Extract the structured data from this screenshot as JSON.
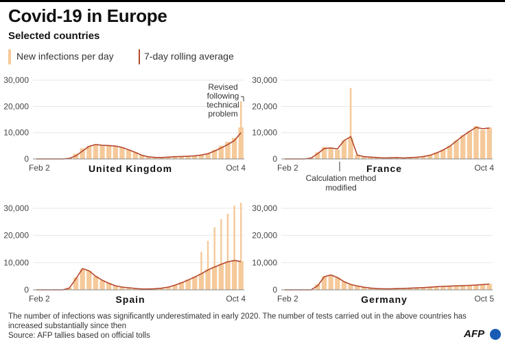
{
  "title": "Covid-19 in Europe",
  "subtitle": "Selected countries",
  "legend": {
    "bars_label": "New infections per day",
    "line_label": "7-day rolling average"
  },
  "colors": {
    "bars": "#f5c99a",
    "line": "#b5472c",
    "axis": "#888888",
    "tick_text": "#444444",
    "afp_blue": "#1a5bb4"
  },
  "footnote": "The number of infections was significantly underestimated in early 2020. The number of tests carried out in the above countries has increased substantially since then",
  "source": "Source: AFP tallies based on official tolls",
  "logo_text": "AFP",
  "chart_data": [
    {
      "type": "bar",
      "title": "United Kingdom",
      "x_start": "Feb 2",
      "x_end": "Oct 4",
      "y_ticks": [
        "30,000",
        "20,000",
        "10,000",
        "0"
      ],
      "ylim": [
        0,
        30000
      ],
      "weekly_new_infections": [
        0,
        0,
        0,
        0,
        0,
        300,
        2000,
        4000,
        5000,
        5500,
        5000,
        5200,
        5000,
        4500,
        3500,
        2500,
        1500,
        800,
        600,
        500,
        800,
        900,
        1000,
        1100,
        1300,
        1600,
        2000,
        3500,
        5000,
        6500,
        8000,
        12000
      ],
      "rolling_average": [
        0,
        0,
        0,
        0,
        0,
        200,
        1200,
        3000,
        4800,
        5500,
        5200,
        5100,
        4900,
        4400,
        3500,
        2500,
        1400,
        800,
        600,
        550,
        700,
        850,
        950,
        1050,
        1200,
        1500,
        2000,
        3000,
        4200,
        5500,
        7000,
        10000
      ],
      "spike": {
        "value": 22000,
        "label": [
          "Revised",
          "following",
          "technical",
          "problem"
        ]
      }
    },
    {
      "type": "bar",
      "title": "France",
      "x_start": "Feb 2",
      "x_end": "Oct 4",
      "y_ticks": [
        "30,000",
        "20,000",
        "10,000",
        "0"
      ],
      "ylim": [
        0,
        30000
      ],
      "weekly_new_infections": [
        0,
        0,
        0,
        0,
        500,
        2500,
        4500,
        4000,
        3500,
        7000,
        8000,
        1500,
        900,
        800,
        600,
        400,
        500,
        500,
        400,
        500,
        700,
        1000,
        1500,
        2500,
        3500,
        5000,
        7000,
        9000,
        10500,
        12500,
        11000,
        12000
      ],
      "rolling_average": [
        0,
        0,
        0,
        0,
        300,
        2000,
        4000,
        4200,
        3800,
        7000,
        8500,
        1500,
        900,
        700,
        550,
        400,
        450,
        500,
        400,
        500,
        650,
        950,
        1400,
        2300,
        3400,
        4800,
        6800,
        8800,
        10500,
        12000,
        11500,
        11800
      ],
      "spike": {
        "value": 27000,
        "label": [
          "Calculation method",
          "modified"
        ]
      }
    },
    {
      "type": "bar",
      "title": "Spain",
      "x_start": "Feb 2",
      "x_end": "Oct 4",
      "y_ticks": [
        "30,000",
        "20,000",
        "10,000",
        "0"
      ],
      "ylim": [
        0,
        30000
      ],
      "weekly_new_infections": [
        0,
        0,
        0,
        0,
        0,
        800,
        4500,
        7500,
        7000,
        5000,
        3500,
        2500,
        1500,
        1000,
        800,
        500,
        300,
        300,
        400,
        600,
        1000,
        1800,
        2800,
        3800,
        4800,
        6000,
        7500,
        8500,
        9500,
        10500,
        11000,
        10500
      ],
      "rolling_average": [
        0,
        0,
        0,
        0,
        0,
        600,
        4000,
        7800,
        7000,
        5000,
        3500,
        2400,
        1500,
        1000,
        750,
        500,
        300,
        300,
        400,
        600,
        1000,
        1700,
        2600,
        3600,
        4700,
        5900,
        7300,
        8400,
        9400,
        10300,
        10800,
        10400
      ],
      "weekend_spikes": [
        14000,
        18000,
        23000,
        26000,
        28000,
        31000,
        32000
      ]
    },
    {
      "type": "bar",
      "title": "Germany",
      "x_start": "Feb 2",
      "x_end": "Oct 5",
      "y_ticks": [
        "30,000",
        "20,000",
        "10,000",
        "0"
      ],
      "ylim": [
        0,
        30000
      ],
      "weekly_new_infections": [
        0,
        0,
        0,
        0,
        0,
        2000,
        5000,
        5500,
        4500,
        3000,
        2000,
        1500,
        1000,
        700,
        500,
        400,
        400,
        500,
        500,
        600,
        700,
        800,
        1000,
        1200,
        1300,
        1400,
        1500,
        1600,
        1700,
        1800,
        2000,
        2200
      ],
      "rolling_average": [
        0,
        0,
        0,
        0,
        0,
        1500,
        4800,
        5500,
        4500,
        3000,
        2000,
        1400,
        950,
        650,
        450,
        380,
        380,
        450,
        500,
        600,
        700,
        800,
        950,
        1150,
        1250,
        1350,
        1450,
        1550,
        1650,
        1750,
        1950,
        2150
      ]
    }
  ]
}
